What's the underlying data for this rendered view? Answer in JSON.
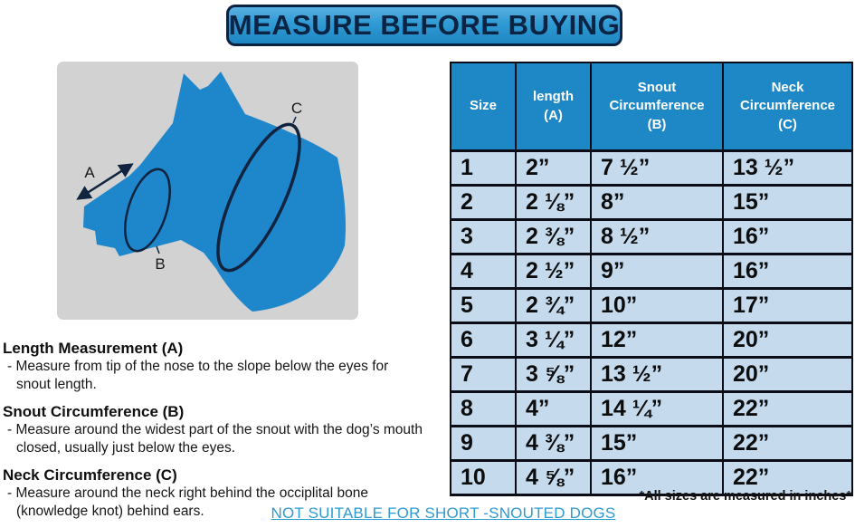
{
  "banner": {
    "title": "MEASURE BEFORE BUYING"
  },
  "diagram": {
    "labels": {
      "a": "A",
      "b": "B",
      "c": "C"
    }
  },
  "instructions": [
    {
      "heading": "Length Measurement (A)",
      "lines": [
        "- Measure from tip of the nose to the slope below the eyes for",
        "snout length."
      ]
    },
    {
      "heading": "Snout Circumference (B)",
      "lines": [
        "- Measure around the widest part of the snout with the dog’s mouth",
        "closed, usually just below the eyes."
      ]
    },
    {
      "heading": "Neck Circumference (C)",
      "lines": [
        "- Measure around the neck right behind the occiplital bone",
        "(knowledge knot) behind ears."
      ]
    }
  ],
  "table": {
    "headers": [
      "Size",
      "length\n(A)",
      "Snout\nCircumference\n(B)",
      "Neck\nCircumference\n(C)"
    ],
    "rows": [
      [
        "1",
        "2”",
        "7 ½”",
        "13 ½”"
      ],
      [
        "2",
        "2 ⅛”",
        "8”",
        "15”"
      ],
      [
        "3",
        "2 ⅜”",
        "8 ½”",
        "16”"
      ],
      [
        "4",
        "2 ½”",
        "9”",
        "16”"
      ],
      [
        "5",
        "2 ¾”",
        "10”",
        "17”"
      ],
      [
        "6",
        "3 ¼”",
        "12”",
        "20”"
      ],
      [
        "7",
        "3 ⅝”",
        "13 ½”",
        "20”"
      ],
      [
        "8",
        "4”",
        "14 ¼”",
        "22”"
      ],
      [
        "9",
        "4 ⅜”",
        "15”",
        "22”"
      ],
      [
        "10",
        "4 ⅝”",
        "16”",
        "22”"
      ]
    ]
  },
  "footnote": "*All sizes are measured in inches*",
  "warning": "NOT SUITABLE FOR SHORT -SNOUTED DOGS",
  "colors": {
    "banner_blue": "#2f9ad4",
    "header_blue": "#1e87c6",
    "row_blue": "#c6daee",
    "dog_blue": "#1e87cc",
    "diagram_gray": "#d2d2d2",
    "link_blue": "#2e9ad3",
    "ink_navy": "#0c2444"
  }
}
